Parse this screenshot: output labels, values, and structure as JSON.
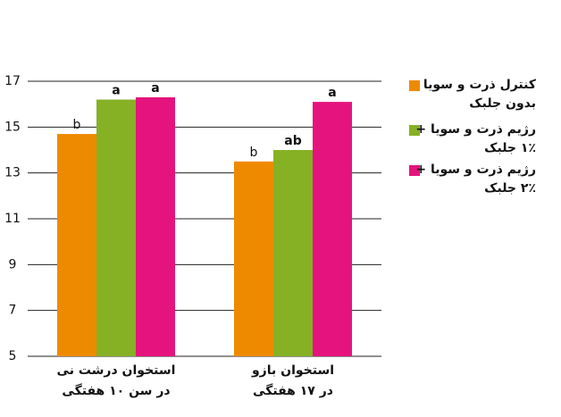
{
  "chart_data": {
    "type": "bar",
    "categories": [
      "استخوان درشت نی\nدر سن ۱۰ هفتگی",
      "استخوان بازو\nدر ۱۷ هفتگی"
    ],
    "series": [
      {
        "name": "کنترل ذرت و سویا\nبدون جلبک",
        "color": "#ee8a00",
        "values": [
          14.7,
          13.5
        ],
        "value_labels": [
          "b",
          "b"
        ]
      },
      {
        "name": "رژیم ذرت و سویا +\n۱٪ جلبک",
        "color": "#86b125",
        "values": [
          16.2,
          14.0
        ],
        "value_labels": [
          "a",
          "ab"
        ]
      },
      {
        "name": "رژیم ذرت و سویا +\n۲٪ جلبک",
        "color": "#e5137d",
        "values": [
          16.3,
          16.1
        ],
        "value_labels": [
          "a",
          "a"
        ]
      }
    ],
    "ylim": [
      5,
      17
    ],
    "yticks": [
      5,
      7,
      9,
      11,
      13,
      15,
      17
    ],
    "grid": true,
    "legend": "right"
  }
}
